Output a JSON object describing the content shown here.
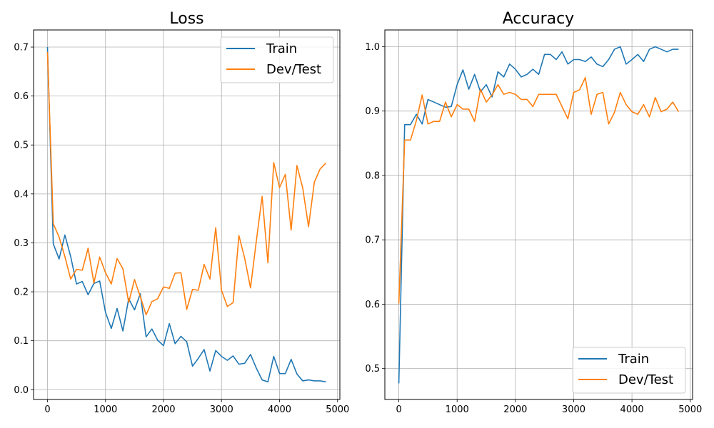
{
  "chart_data": [
    {
      "type": "line",
      "title": "Loss",
      "xlabel": "",
      "ylabel": "",
      "xlim": [
        -240,
        5040
      ],
      "ylim": [
        -0.02,
        0.735
      ],
      "xticks": [
        0,
        1000,
        2000,
        3000,
        4000,
        5000
      ],
      "xtick_labels": [
        "0",
        "1000",
        "2000",
        "3000",
        "4000",
        "5000"
      ],
      "yticks": [
        0.0,
        0.1,
        0.2,
        0.3,
        0.4,
        0.5,
        0.6,
        0.7
      ],
      "ytick_labels": [
        "0.0",
        "0.1",
        "0.2",
        "0.3",
        "0.4",
        "0.5",
        "0.6",
        "0.7"
      ],
      "grid": true,
      "legend": "top-right",
      "x": [
        0,
        100,
        200,
        300,
        400,
        500,
        600,
        700,
        800,
        900,
        1000,
        1100,
        1200,
        1300,
        1400,
        1500,
        1600,
        1700,
        1800,
        1900,
        2000,
        2100,
        2200,
        2300,
        2400,
        2500,
        2600,
        2700,
        2800,
        2900,
        3000,
        3100,
        3200,
        3300,
        3400,
        3500,
        3600,
        3700,
        3800,
        3900,
        4000,
        4100,
        4200,
        4300,
        4400,
        4500,
        4600,
        4700,
        4800
      ],
      "series": [
        {
          "name": "Train",
          "color": "#1f77b4",
          "values": [
            0.7,
            0.298,
            0.267,
            0.316,
            0.272,
            0.216,
            0.221,
            0.194,
            0.217,
            0.222,
            0.158,
            0.125,
            0.166,
            0.12,
            0.186,
            0.163,
            0.196,
            0.108,
            0.124,
            0.101,
            0.09,
            0.135,
            0.094,
            0.109,
            0.098,
            0.048,
            0.064,
            0.082,
            0.038,
            0.08,
            0.068,
            0.06,
            0.069,
            0.052,
            0.054,
            0.072,
            0.044,
            0.02,
            0.016,
            0.068,
            0.033,
            0.033,
            0.062,
            0.032,
            0.018,
            0.02,
            0.018,
            0.018,
            0.016
          ]
        },
        {
          "name": "Dev/Test",
          "color": "#ff7f0e",
          "values": [
            0.69,
            0.339,
            0.312,
            0.272,
            0.226,
            0.246,
            0.244,
            0.289,
            0.218,
            0.271,
            0.239,
            0.216,
            0.268,
            0.247,
            0.178,
            0.225,
            0.19,
            0.153,
            0.18,
            0.186,
            0.21,
            0.207,
            0.238,
            0.239,
            0.164,
            0.205,
            0.203,
            0.256,
            0.226,
            0.331,
            0.203,
            0.17,
            0.178,
            0.315,
            0.268,
            0.208,
            0.304,
            0.395,
            0.259,
            0.464,
            0.413,
            0.44,
            0.326,
            0.458,
            0.412,
            0.333,
            0.424,
            0.451,
            0.463
          ]
        }
      ]
    },
    {
      "type": "line",
      "title": "Accuracy",
      "xlabel": "",
      "ylabel": "",
      "xlim": [
        -240,
        5040
      ],
      "ylim": [
        0.452,
        1.026
      ],
      "xticks": [
        0,
        1000,
        2000,
        3000,
        4000,
        5000
      ],
      "xtick_labels": [
        "0",
        "1000",
        "2000",
        "3000",
        "4000",
        "5000"
      ],
      "yticks": [
        0.5,
        0.6,
        0.7,
        0.8,
        0.9,
        1.0
      ],
      "ytick_labels": [
        "0.5",
        "0.6",
        "0.7",
        "0.8",
        "0.9",
        "1.0"
      ],
      "grid": true,
      "legend": "bottom-right",
      "x": [
        0,
        100,
        200,
        300,
        400,
        500,
        600,
        700,
        800,
        900,
        1000,
        1100,
        1200,
        1300,
        1400,
        1500,
        1600,
        1700,
        1800,
        1900,
        2000,
        2100,
        2200,
        2300,
        2400,
        2500,
        2600,
        2700,
        2800,
        2900,
        3000,
        3100,
        3200,
        3300,
        3400,
        3500,
        3600,
        3700,
        3800,
        3900,
        4000,
        4100,
        4200,
        4300,
        4400,
        4500,
        4600,
        4700,
        4800
      ],
      "series": [
        {
          "name": "Train",
          "color": "#1f77b4",
          "values": [
            0.477,
            0.879,
            0.879,
            0.895,
            0.88,
            0.918,
            0.914,
            0.91,
            0.906,
            0.907,
            0.941,
            0.964,
            0.934,
            0.957,
            0.93,
            0.941,
            0.922,
            0.961,
            0.953,
            0.973,
            0.965,
            0.953,
            0.957,
            0.965,
            0.957,
            0.988,
            0.988,
            0.98,
            0.992,
            0.973,
            0.98,
            0.98,
            0.977,
            0.984,
            0.973,
            0.969,
            0.98,
            0.996,
            1.0,
            0.973,
            0.98,
            0.988,
            0.977,
            0.996,
            1.0,
            0.996,
            0.992,
            0.996,
            0.996
          ]
        },
        {
          "name": "Dev/Test",
          "color": "#ff7f0e",
          "values": [
            0.601,
            0.855,
            0.855,
            0.885,
            0.925,
            0.88,
            0.884,
            0.884,
            0.914,
            0.891,
            0.91,
            0.903,
            0.903,
            0.884,
            0.934,
            0.914,
            0.925,
            0.941,
            0.926,
            0.929,
            0.926,
            0.918,
            0.918,
            0.907,
            0.926,
            0.926,
            0.926,
            0.926,
            0.907,
            0.888,
            0.929,
            0.933,
            0.952,
            0.895,
            0.926,
            0.929,
            0.88,
            0.898,
            0.929,
            0.91,
            0.899,
            0.895,
            0.91,
            0.891,
            0.921,
            0.899,
            0.903,
            0.914,
            0.899
          ]
        }
      ]
    }
  ]
}
